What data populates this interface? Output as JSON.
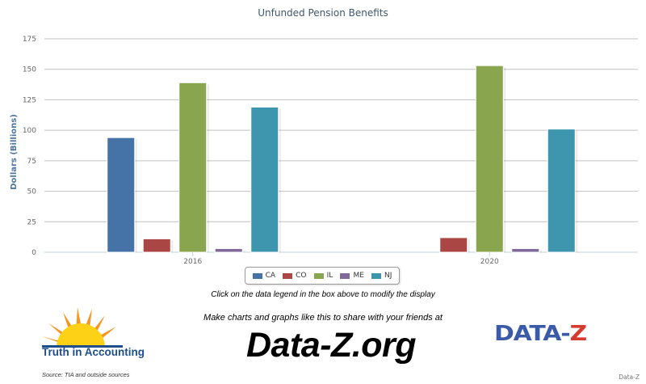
{
  "chart_data": {
    "type": "bar",
    "title": "Unfunded Pension Benefits",
    "ylabel": "Dollars (Billions)",
    "xlabel": "",
    "ylim": [
      0,
      175
    ],
    "yticks": [
      0,
      25,
      50,
      75,
      100,
      125,
      150,
      175
    ],
    "categories": [
      "2016",
      "2020"
    ],
    "grid": true,
    "legend_placement": "bottom-center",
    "series": [
      {
        "name": "CA",
        "color": "#4572a7",
        "values": [
          94,
          null
        ]
      },
      {
        "name": "CO",
        "color": "#aa4643",
        "values": [
          11,
          12
        ]
      },
      {
        "name": "IL",
        "color": "#89a54e",
        "values": [
          139,
          153
        ]
      },
      {
        "name": "ME",
        "color": "#80699b",
        "values": [
          3,
          3
        ]
      },
      {
        "name": "NJ",
        "color": "#3d96ae",
        "values": [
          119,
          101
        ]
      }
    ]
  },
  "instruction_text": "Click on the data legend in the box above to modify the display",
  "promo_text": "Make charts and graphs like this to share with your friends at",
  "site_text": "Data-Z.org",
  "tia_logo_text": "Truth in Accounting",
  "source_text": "Source: TIA and outside sources",
  "dz_logo": {
    "left": "DATA-",
    "right": "Z"
  },
  "credit_text": "Data-Z"
}
